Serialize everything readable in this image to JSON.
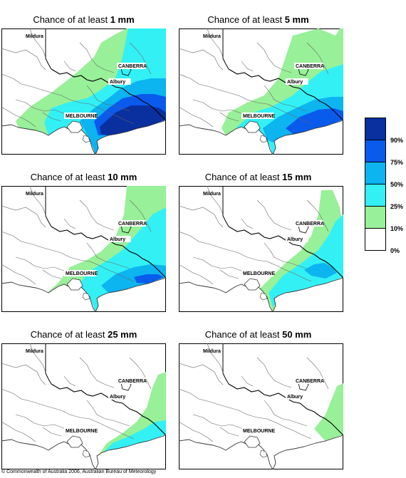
{
  "panels": [
    {
      "prefix": "Chance of at least ",
      "amount": "1 mm"
    },
    {
      "prefix": "Chance of at least ",
      "amount": "5 mm"
    },
    {
      "prefix": "Chance of at least ",
      "amount": "10 mm"
    },
    {
      "prefix": "Chance of at least ",
      "amount": "15 mm"
    },
    {
      "prefix": "Chance of at least ",
      "amount": "25 mm"
    },
    {
      "prefix": "Chance of at least ",
      "amount": "50 mm"
    }
  ],
  "places": {
    "mildura": "Mildura",
    "canberra": "CANBERRA",
    "albury": "Albury",
    "melbourne": "MELBOURNE"
  },
  "legend": {
    "labels": [
      "90%",
      "75%",
      "50%",
      "25%",
      "10%",
      "0%"
    ],
    "colors": [
      "#0a2f9e",
      "#0a5aec",
      "#0cb4f0",
      "#33f0f5",
      "#98f098",
      "#ffffff"
    ]
  },
  "copyright": "© Commonwealth of Australia 2006, Australian Bureau of Meteorology"
}
